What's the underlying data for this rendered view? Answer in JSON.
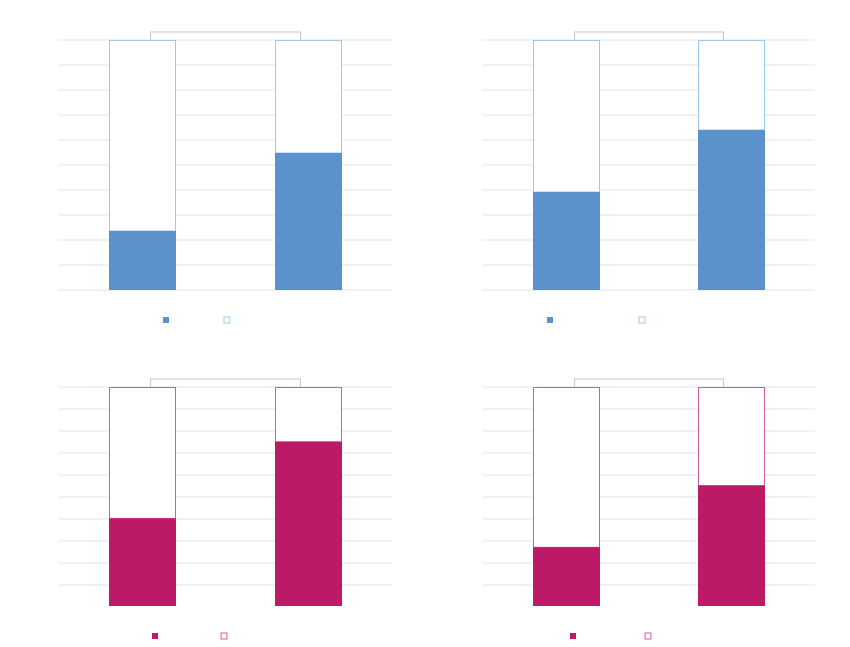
{
  "chart_data": [
    {
      "type": "bar",
      "stacked": true,
      "categories": [
        "",
        ""
      ],
      "series": [
        {
          "values": [
            23.6,
            54.8
          ],
          "color": "#5b92cb",
          "fill": "solid"
        },
        {
          "values": [
            76.4,
            45.2
          ],
          "color": "#9ec9ea",
          "fill": "outline"
        }
      ],
      "ylim": [
        0,
        100
      ],
      "grid": true,
      "legend": "bottom-left",
      "bracket": true
    },
    {
      "type": "bar",
      "stacked": true,
      "categories": [
        "",
        ""
      ],
      "series": [
        {
          "values": [
            39.2,
            64.0
          ],
          "color": "#5b92cb",
          "fill": "solid"
        },
        {
          "values": [
            60.8,
            36.0
          ],
          "color": "#9ec9ea",
          "fill": "outline"
        }
      ],
      "ylim": [
        0,
        100
      ],
      "grid": true,
      "legend": "bottom-left",
      "bracket": true
    },
    {
      "type": "bar",
      "stacked": true,
      "categories": [
        "",
        ""
      ],
      "series": [
        {
          "values": [
            40.0,
            75.0
          ],
          "color": "#bc1a66",
          "fill": "solid"
        },
        {
          "values": [
            60.0,
            25.0
          ],
          "color": "#d45aa0",
          "fill": "outline"
        }
      ],
      "ylim": [
        0,
        100
      ],
      "grid": true,
      "legend": "bottom-left",
      "bracket": true
    },
    {
      "type": "bar",
      "stacked": true,
      "categories": [
        "",
        ""
      ],
      "series": [
        {
          "values": [
            26.8,
            55.0
          ],
          "color": "#bc1a66",
          "fill": "solid"
        },
        {
          "values": [
            73.2,
            45.0
          ],
          "color": "#d45aa0",
          "fill": "outline"
        }
      ],
      "ylim": [
        0,
        100
      ],
      "grid": true,
      "legend": "bottom-left",
      "bracket": true
    }
  ],
  "colors": {
    "grid": "#e6e6e6",
    "bracket": "#c4c4c4",
    "background": "#ffffff"
  }
}
